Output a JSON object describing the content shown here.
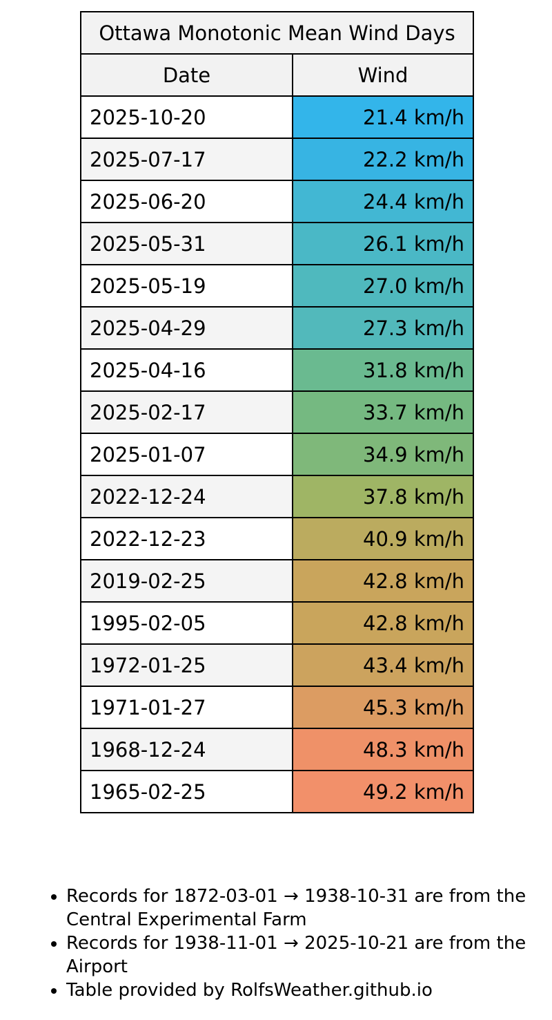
{
  "table": {
    "title": "Ottawa Monotonic Mean Wind Days",
    "columns": [
      "Date",
      "Wind"
    ],
    "rows": [
      {
        "date": "2025-10-20",
        "wind": "21.4 km/h",
        "color": "#33b5ea"
      },
      {
        "date": "2025-07-17",
        "wind": "22.2 km/h",
        "color": "#37b4e3"
      },
      {
        "date": "2025-06-20",
        "wind": "24.4 km/h",
        "color": "#42b7d3"
      },
      {
        "date": "2025-05-31",
        "wind": "26.1 km/h",
        "color": "#4ab8c6"
      },
      {
        "date": "2025-05-19",
        "wind": "27.0 km/h",
        "color": "#4fb9be"
      },
      {
        "date": "2025-04-29",
        "wind": "27.3 km/h",
        "color": "#52b9bb"
      },
      {
        "date": "2025-04-16",
        "wind": "31.8 km/h",
        "color": "#6aba90"
      },
      {
        "date": "2025-02-17",
        "wind": "33.7 km/h",
        "color": "#75b981"
      },
      {
        "date": "2025-01-07",
        "wind": "34.9 km/h",
        "color": "#7fb87a"
      },
      {
        "date": "2022-12-24",
        "wind": "37.8 km/h",
        "color": "#9fb565"
      },
      {
        "date": "2022-12-23",
        "wind": "40.9 km/h",
        "color": "#bbab5f"
      },
      {
        "date": "2019-02-25",
        "wind": "42.8 km/h",
        "color": "#c9a55c"
      },
      {
        "date": "1995-02-05",
        "wind": "42.8 km/h",
        "color": "#c9a55c"
      },
      {
        "date": "1972-01-25",
        "wind": "43.4 km/h",
        "color": "#cca35e"
      },
      {
        "date": "1971-01-27",
        "wind": "45.3 km/h",
        "color": "#dc9c62"
      },
      {
        "date": "1968-12-24",
        "wind": "48.3 km/h",
        "color": "#ef9168"
      },
      {
        "date": "1965-02-25",
        "wind": "49.2 km/h",
        "color": "#f2906a"
      }
    ]
  },
  "notes": [
    "Records for 1872-03-01 → 1938-10-31 are from the Central Experimental Farm",
    "Records for 1938-11-01 → 2025-10-21 are from the Airport",
    "Table provided by RolfsWeather.github.io"
  ]
}
